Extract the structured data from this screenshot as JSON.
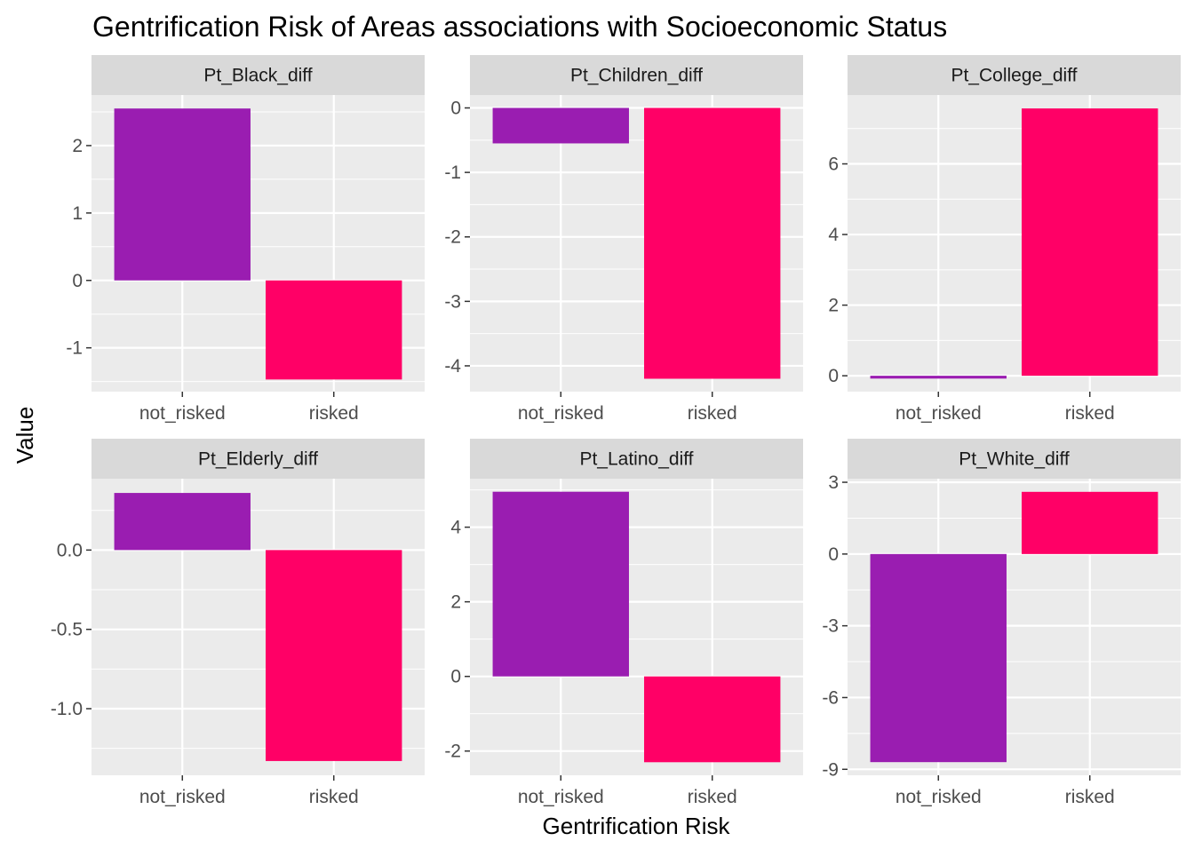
{
  "chart_data": {
    "type": "bar",
    "title": "Gentrification Risk of Areas associations with Socioeconomic Status",
    "xlabel": "Gentrification Risk",
    "ylabel": "Value",
    "categories": [
      "not_risked",
      "risked"
    ],
    "colors": {
      "not_risked": "#9A1DB1",
      "risked": "#FF0066",
      "panel_bg": "#EBEBEB",
      "strip_bg": "#D9D9D9",
      "grid": "#FFFFFF"
    },
    "grid": true,
    "panels": [
      {
        "label": "Pt_Black_diff",
        "values": [
          2.55,
          -1.47
        ],
        "ylim": [
          -1.65,
          2.75
        ],
        "ticks": [
          -1,
          0,
          1,
          2
        ],
        "tick_labels": [
          "-1",
          "0",
          "1",
          "2"
        ]
      },
      {
        "label": "Pt_Children_diff",
        "values": [
          -0.55,
          -4.2
        ],
        "ylim": [
          -4.4,
          0.2
        ],
        "ticks": [
          -4,
          -3,
          -2,
          -1,
          0
        ],
        "tick_labels": [
          "-4",
          "-3",
          "-2",
          "-1",
          "0"
        ]
      },
      {
        "label": "Pt_College_diff",
        "values": [
          -0.08,
          7.57
        ],
        "ylim": [
          -0.45,
          7.95
        ],
        "ticks": [
          0,
          2,
          4,
          6
        ],
        "tick_labels": [
          "0",
          "2",
          "4",
          "6"
        ]
      },
      {
        "label": "Pt_Elderly_diff",
        "values": [
          0.36,
          -1.33
        ],
        "ylim": [
          -1.42,
          0.45
        ],
        "ticks": [
          -1.0,
          -0.5,
          0.0
        ],
        "tick_labels": [
          "-1.0",
          "-0.5",
          "0.0"
        ]
      },
      {
        "label": "Pt_Latino_diff",
        "values": [
          4.95,
          -2.3
        ],
        "ylim": [
          -2.65,
          5.3
        ],
        "ticks": [
          -2,
          0,
          2,
          4
        ],
        "tick_labels": [
          "-2",
          "0",
          "2",
          "4"
        ]
      },
      {
        "label": "Pt_White_diff",
        "values": [
          -8.7,
          2.6
        ],
        "ylim": [
          -9.25,
          3.15
        ],
        "ticks": [
          -9,
          -6,
          -3,
          0,
          3
        ],
        "tick_labels": [
          "-9",
          "-6",
          "-3",
          "0",
          "3"
        ]
      }
    ]
  }
}
